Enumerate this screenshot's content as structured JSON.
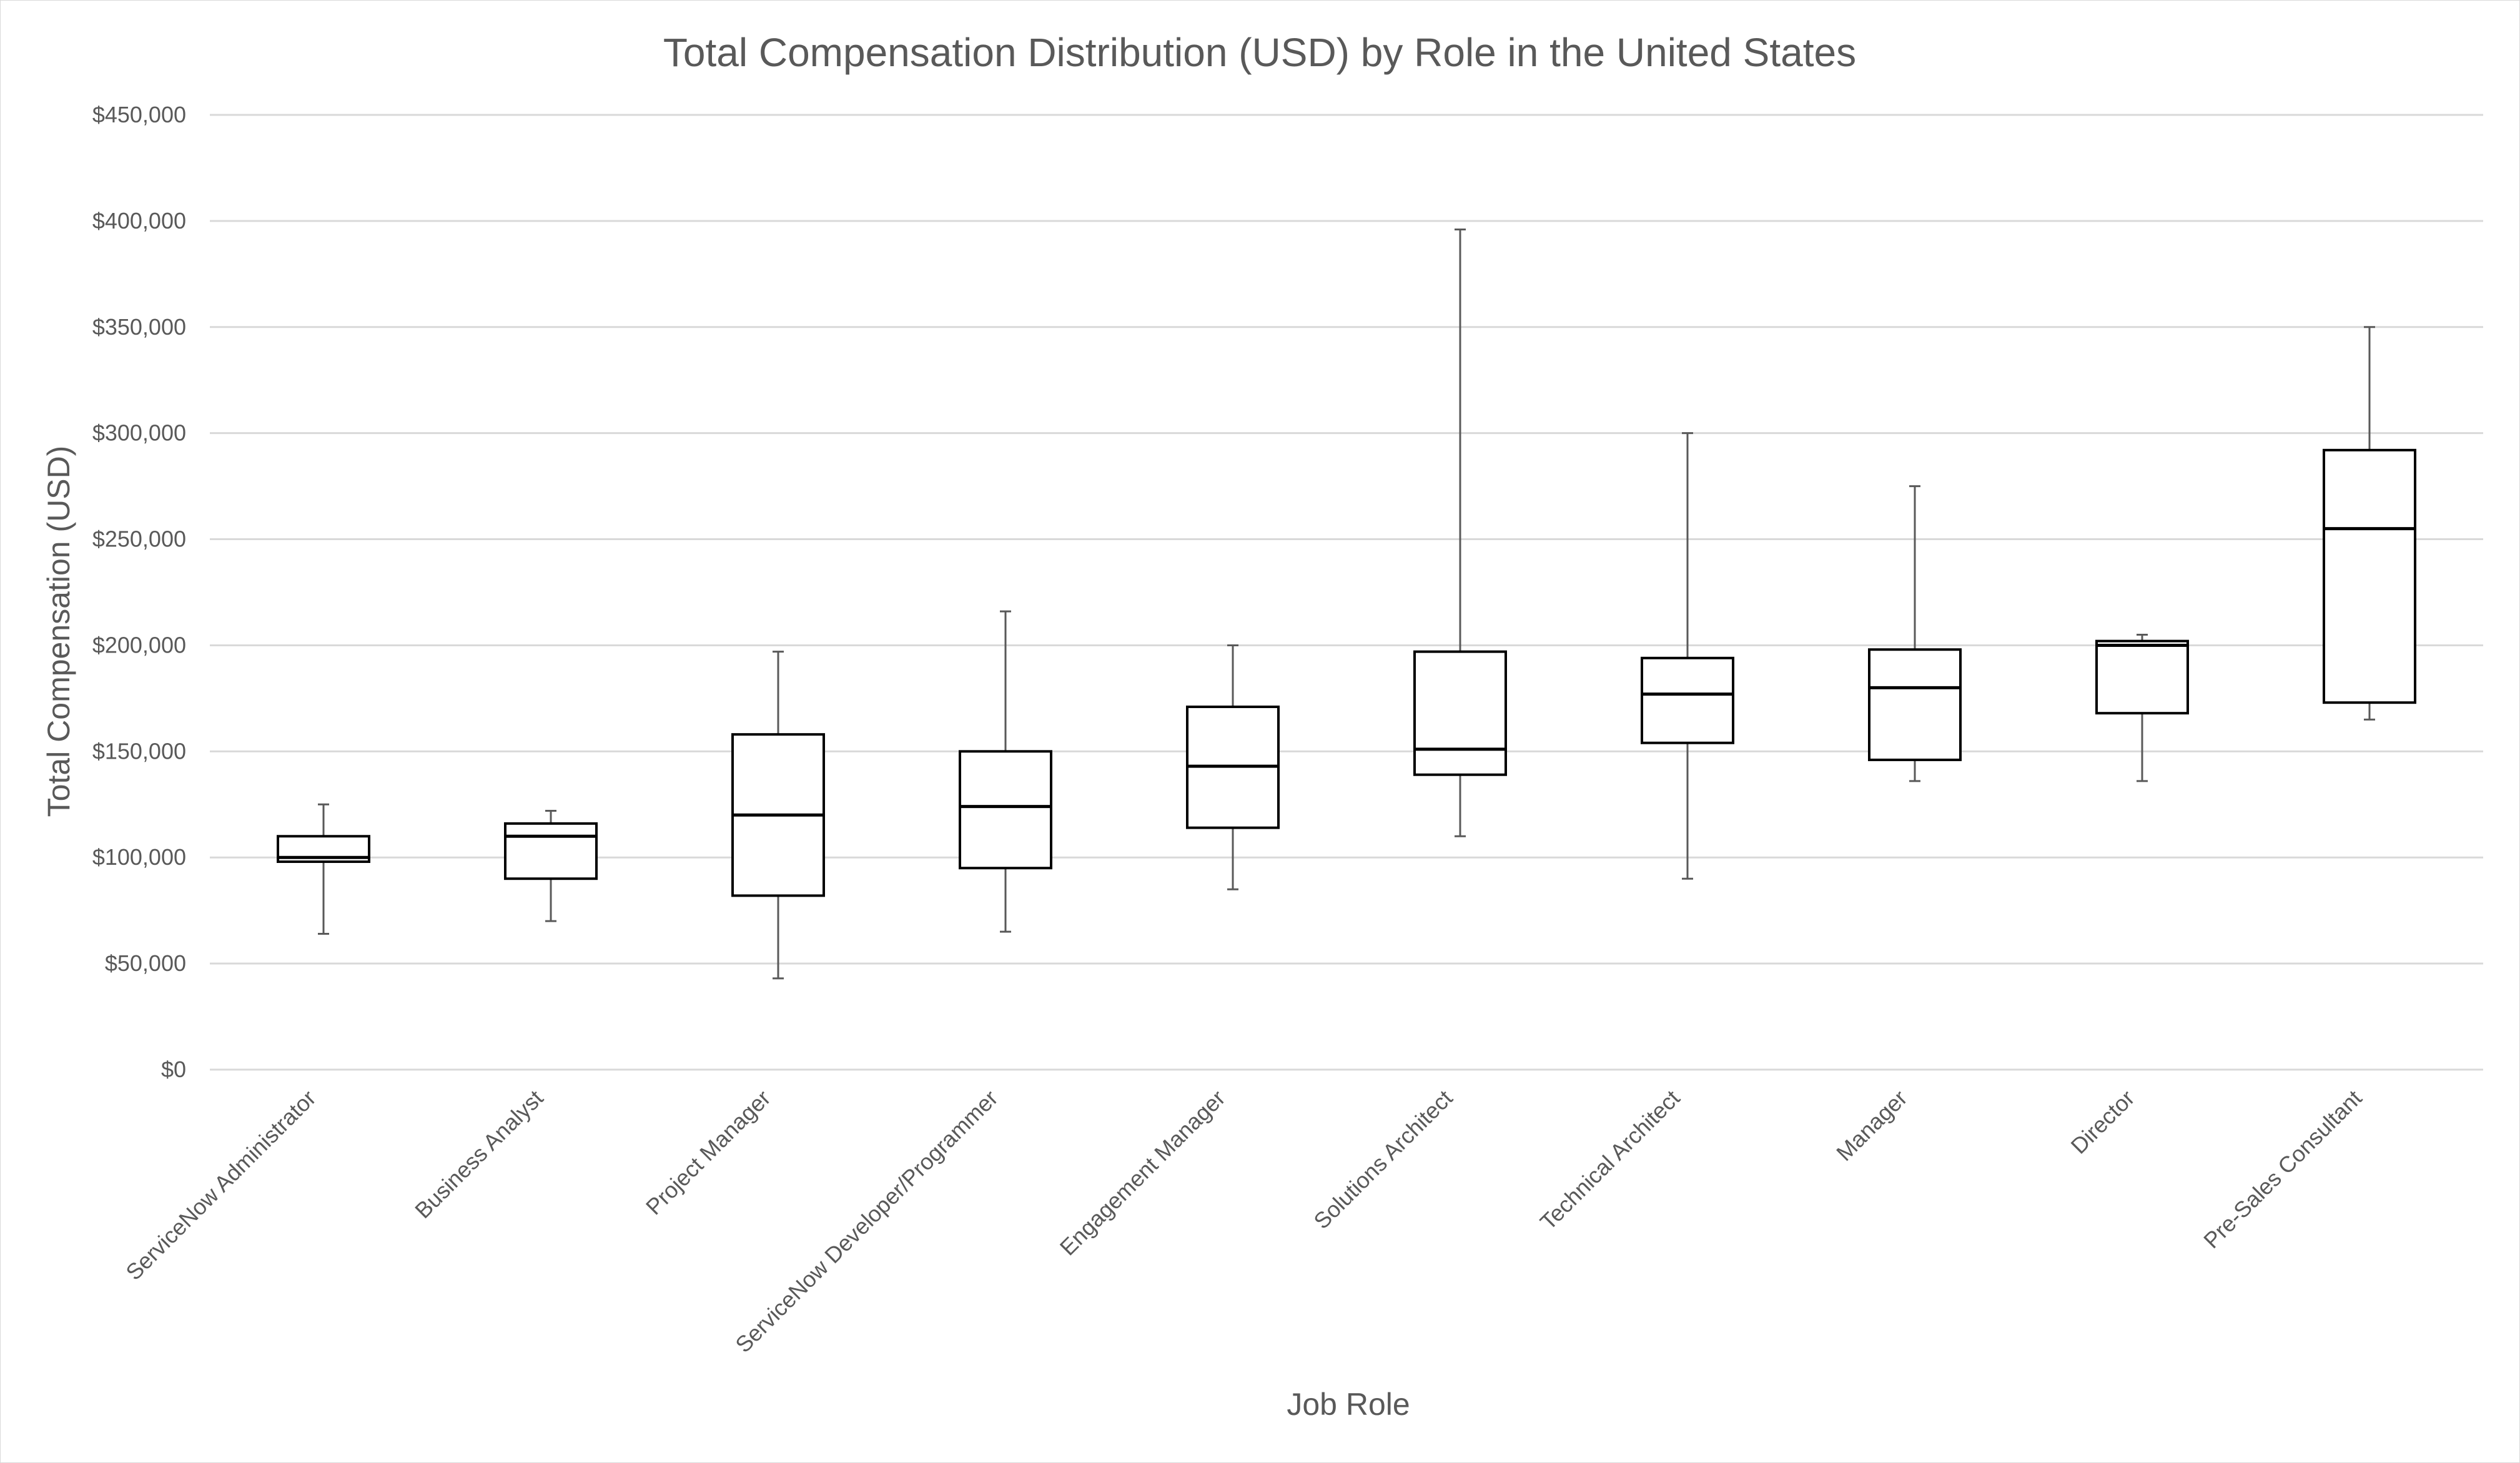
{
  "chart_data": {
    "type": "box",
    "title": "Total Compensation Distribution (USD) by Role in the United States",
    "xlabel": "Job Role",
    "ylabel": "Total Compensation (USD)",
    "ylim": [
      0,
      450000
    ],
    "y_ticks": [
      0,
      50000,
      100000,
      150000,
      200000,
      250000,
      300000,
      350000,
      400000,
      450000
    ],
    "y_tick_labels": [
      "$0",
      "$50,000",
      "$100,000",
      "$150,000",
      "$200,000",
      "$250,000",
      "$300,000",
      "$350,000",
      "$400,000",
      "$450,000"
    ],
    "grid": true,
    "legend": "none",
    "colors": {
      "box_stroke": "#000000",
      "whisker": "#595959",
      "grid": "#d9d9d9",
      "text": "#595959"
    },
    "categories": [
      "ServiceNow Administrator",
      "Business Analyst",
      "Project Manager",
      "ServiceNow Developer/Programmer",
      "Engagement Manager",
      "Solutions Architect",
      "Technical Architect",
      "Manager",
      "Director",
      "Pre-Sales Consultant"
    ],
    "boxes": [
      {
        "min": 64000,
        "q1": 98000,
        "median": 100000,
        "q3": 110000,
        "max": 125000
      },
      {
        "min": 70000,
        "q1": 90000,
        "median": 110000,
        "q3": 116000,
        "max": 122000
      },
      {
        "min": 43000,
        "q1": 82000,
        "median": 120000,
        "q3": 158000,
        "max": 197000
      },
      {
        "min": 65000,
        "q1": 95000,
        "median": 124000,
        "q3": 150000,
        "max": 216000
      },
      {
        "min": 85000,
        "q1": 114000,
        "median": 143000,
        "q3": 171000,
        "max": 200000
      },
      {
        "min": 110000,
        "q1": 139000,
        "median": 151000,
        "q3": 197000,
        "max": 396000
      },
      {
        "min": 90000,
        "q1": 154000,
        "median": 177000,
        "q3": 194000,
        "max": 300000
      },
      {
        "min": 136000,
        "q1": 146000,
        "median": 180000,
        "q3": 198000,
        "max": 275000
      },
      {
        "min": 136000,
        "q1": 168000,
        "median": 200000,
        "q3": 202000,
        "max": 205000
      },
      {
        "min": 165000,
        "q1": 173000,
        "median": 255000,
        "q3": 292000,
        "max": 350000
      }
    ]
  }
}
